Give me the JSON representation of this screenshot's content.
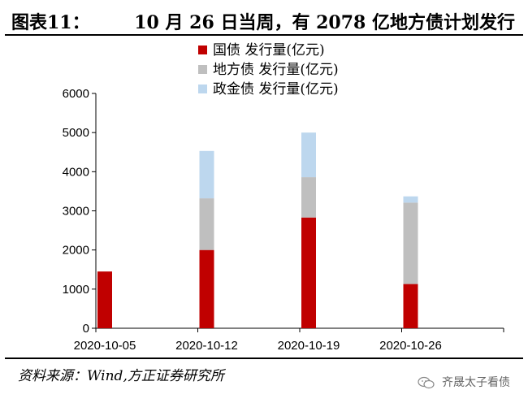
{
  "header": {
    "figure_no": "图表11：",
    "title": "10 月 26 日当周，有 2078 亿地方债计划发行"
  },
  "footer": {
    "source": "资料来源：Wind,方正证券研究所",
    "watermark": "齐晟太子看债",
    "watermark_icon": "wechat-icon"
  },
  "colors": {
    "national": "#c00000",
    "local": "#bfbfbf",
    "policy": "#bdd7ee"
  },
  "chart_data": {
    "type": "bar",
    "stacked": true,
    "categories": [
      "2020-10-05",
      "2020-10-12",
      "2020-10-19",
      "2020-10-26"
    ],
    "series": [
      {
        "name": "国债 发行量(亿元)",
        "values": [
          1450,
          2000,
          2830,
          1130
        ]
      },
      {
        "name": "地方债 发行量(亿元)",
        "values": [
          0,
          1320,
          1030,
          2080
        ]
      },
      {
        "name": "政金债 发行量(亿元)",
        "values": [
          0,
          1210,
          1140,
          160
        ]
      }
    ],
    "ylim": [
      0,
      6000
    ],
    "yticks": [
      0,
      1000,
      2000,
      3000,
      4000,
      5000,
      6000
    ],
    "legend": "top-center",
    "grid": false
  }
}
